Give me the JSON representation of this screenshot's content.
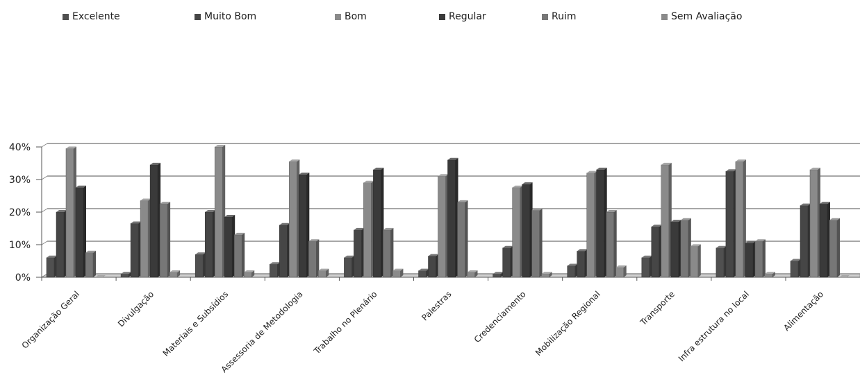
{
  "chart_data": {
    "type": "bar",
    "title": "",
    "xlabel": "",
    "ylabel": "",
    "ylim": [
      0,
      0.4
    ],
    "y_ticks": [
      "0%",
      "10%",
      "20%",
      "30%",
      "40%"
    ],
    "y_tick_values": [
      0,
      0.1,
      0.2,
      0.3,
      0.4
    ],
    "grid": true,
    "legend_position": "top",
    "categories": [
      "Organização Geral",
      "Divulgação",
      "Materiais e Subsídios",
      "Assessoria de Metodologia",
      "Trabalho no Plenário",
      "Palestras",
      "Credenciamento",
      "Mobilização Regional",
      "Transporte",
      "Infra estrutura no local",
      "Alimentação"
    ],
    "series": [
      {
        "name": "Excelente",
        "color": "#505050",
        "values": [
          0.06,
          0.01,
          0.07,
          0.04,
          0.06,
          0.02,
          0.01,
          0.035,
          0.06,
          0.09,
          0.05
        ]
      },
      {
        "name": "Muito Bom",
        "color": "#464646",
        "values": [
          0.2,
          0.165,
          0.2,
          0.16,
          0.145,
          0.065,
          0.09,
          0.08,
          0.155,
          0.325,
          0.22
        ]
      },
      {
        "name": "Bom",
        "color": "#8a8a8a",
        "values": [
          0.395,
          0.235,
          0.4,
          0.355,
          0.29,
          0.31,
          0.275,
          0.32,
          0.345,
          0.355,
          0.33
        ]
      },
      {
        "name": "Regular",
        "color": "#3a3a3a",
        "values": [
          0.275,
          0.345,
          0.185,
          0.315,
          0.33,
          0.36,
          0.285,
          0.33,
          0.17,
          0.105,
          0.225
        ]
      },
      {
        "name": "Ruim",
        "color": "#777777",
        "values": [
          0.075,
          0.225,
          0.13,
          0.11,
          0.145,
          0.23,
          0.205,
          0.2,
          0.175,
          0.11,
          0.175
        ]
      },
      {
        "name": "Sem Avaliação",
        "color": "#8a8a8a",
        "values": [
          0.0,
          0.015,
          0.015,
          0.02,
          0.02,
          0.015,
          0.01,
          0.03,
          0.095,
          0.01,
          0.0
        ]
      }
    ]
  }
}
